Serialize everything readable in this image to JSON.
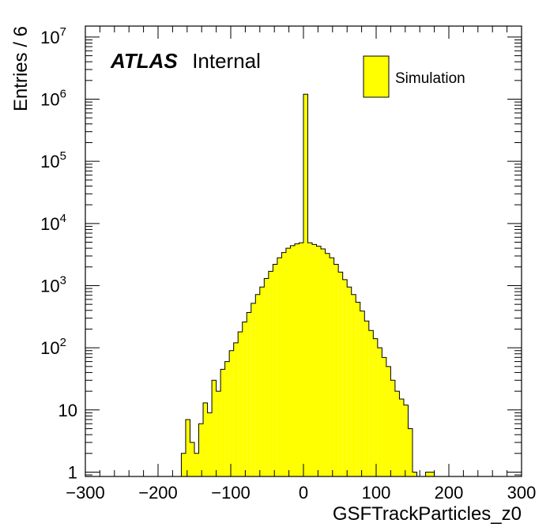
{
  "chart_data": {
    "type": "histogram",
    "xlabel": "GSFTrackParticles_z0",
    "ylabel": "Entries / 6",
    "xlim": [
      -300,
      300
    ],
    "ylim": [
      0.85,
      15000000
    ],
    "yscale": "log",
    "bin_width": 6,
    "fill_color": "#ffff00",
    "line_color": "#000000",
    "legend_position": "top-right",
    "x_ticks": [
      {
        "v": -300,
        "label": "−300"
      },
      {
        "v": -200,
        "label": "−200"
      },
      {
        "v": -100,
        "label": "−100"
      },
      {
        "v": 0,
        "label": "0"
      },
      {
        "v": 100,
        "label": "100"
      },
      {
        "v": 200,
        "label": "200"
      },
      {
        "v": 300,
        "label": "300"
      }
    ],
    "y_ticks": [
      {
        "v": 1,
        "label": "1",
        "exp": ""
      },
      {
        "v": 10,
        "label": "10",
        "exp": ""
      },
      {
        "v": 100,
        "label": "10",
        "exp": "2"
      },
      {
        "v": 1000,
        "label": "10",
        "exp": "3"
      },
      {
        "v": 10000,
        "label": "10",
        "exp": "4"
      },
      {
        "v": 100000,
        "label": "10",
        "exp": "5"
      },
      {
        "v": 1000000,
        "label": "10",
        "exp": "6"
      },
      {
        "v": 10000000,
        "label": "10",
        "exp": "7"
      }
    ],
    "annotation": {
      "experiment": "ATLAS",
      "status": "Internal"
    },
    "series": [
      {
        "name": "Simulation",
        "bin_left_edges": [
          -168,
          -162,
          -156,
          -150,
          -144,
          -138,
          -132,
          -126,
          -120,
          -114,
          -108,
          -102,
          -96,
          -90,
          -84,
          -78,
          -72,
          -66,
          -60,
          -54,
          -48,
          -42,
          -36,
          -30,
          -24,
          -18,
          -12,
          -6,
          0,
          6,
          12,
          18,
          24,
          30,
          36,
          42,
          48,
          54,
          60,
          66,
          72,
          78,
          84,
          90,
          96,
          102,
          108,
          114,
          120,
          126,
          132,
          138,
          144,
          150,
          156,
          162,
          168,
          174
        ],
        "values": [
          2,
          7,
          3,
          2,
          6,
          13,
          9,
          30,
          20,
          45,
          60,
          90,
          120,
          180,
          260,
          370,
          520,
          720,
          950,
          1300,
          1700,
          2200,
          2800,
          3400,
          4000,
          4400,
          4700,
          4900,
          1200000,
          4900,
          4600,
          4300,
          3900,
          3300,
          2800,
          2200,
          1650,
          1250,
          950,
          720,
          540,
          390,
          270,
          190,
          140,
          100,
          70,
          50,
          30,
          20,
          15,
          12,
          5,
          1,
          0,
          0,
          1,
          1
        ]
      }
    ]
  }
}
